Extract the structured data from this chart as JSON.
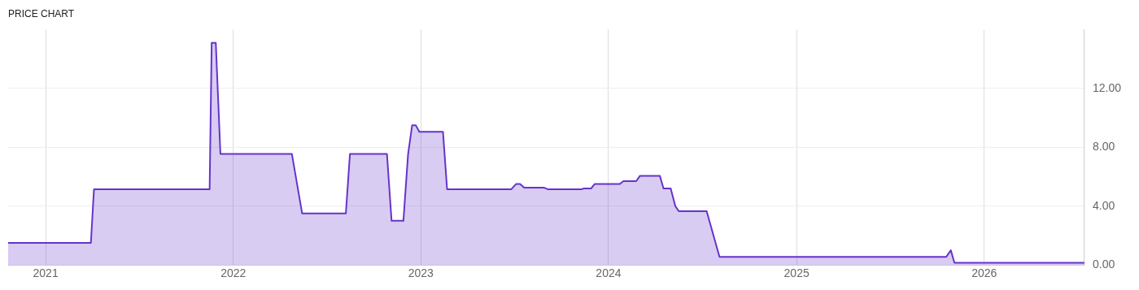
{
  "chart_data": {
    "type": "area",
    "title": "PRICE CHART",
    "x": [
      "2020-10-20",
      "2021-03-30",
      "2021-04-05",
      "2021-11-16",
      "2021-11-20",
      "2021-11-28",
      "2021-12-07",
      "2022-04-25",
      "2022-05-15",
      "2022-08-08",
      "2022-08-16",
      "2022-10-27",
      "2022-11-05",
      "2022-11-28",
      "2022-12-07",
      "2022-12-15",
      "2022-12-22",
      "2022-12-29",
      "2023-02-13",
      "2023-02-21",
      "2023-06-26",
      "2023-07-05",
      "2023-07-13",
      "2023-07-21",
      "2023-08-29",
      "2023-09-05",
      "2023-11-10",
      "2023-11-14",
      "2023-11-28",
      "2023-12-05",
      "2024-01-23",
      "2024-01-30",
      "2024-02-24",
      "2024-03-02",
      "2024-04-10",
      "2024-04-17",
      "2024-05-01",
      "2024-05-10",
      "2024-05-17",
      "2024-07-10",
      "2024-08-04",
      "2025-10-19",
      "2025-10-28",
      "2025-11-04",
      "2026-07-15"
    ],
    "series": [
      {
        "color": "#6633cc",
        "values": [
          1.5,
          1.5,
          5.15,
          5.15,
          15.1,
          15.1,
          7.55,
          7.55,
          3.5,
          3.5,
          7.55,
          7.55,
          3.0,
          3.0,
          7.5,
          9.5,
          9.5,
          9.05,
          9.05,
          5.15,
          5.15,
          5.5,
          5.5,
          5.25,
          5.25,
          5.15,
          5.15,
          5.2,
          5.2,
          5.5,
          5.5,
          5.7,
          5.7,
          6.05,
          6.05,
          5.2,
          5.2,
          4.0,
          3.65,
          3.65,
          0.55,
          0.55,
          1.0,
          0.15,
          0.15
        ]
      }
    ],
    "xlim": [
      "2020-10-20",
      "2026-07-15"
    ],
    "xticks": [
      {
        "value": "2021-01-01",
        "label": "2021"
      },
      {
        "value": "2022-01-01",
        "label": "2022"
      },
      {
        "value": "2023-01-01",
        "label": "2023"
      },
      {
        "value": "2024-01-01",
        "label": "2024"
      },
      {
        "value": "2025-01-01",
        "label": "2025"
      },
      {
        "value": "2026-01-01",
        "label": "2026"
      }
    ],
    "ylim": [
      0,
      16
    ],
    "yticks": [
      {
        "value": 0,
        "label": "0.00"
      },
      {
        "value": 4,
        "label": "4.00"
      },
      {
        "value": 8,
        "label": "8.00"
      },
      {
        "value": 12,
        "label": "12.00"
      }
    ],
    "grid": true,
    "legend": false,
    "marker": "none",
    "line_style": "solid"
  }
}
